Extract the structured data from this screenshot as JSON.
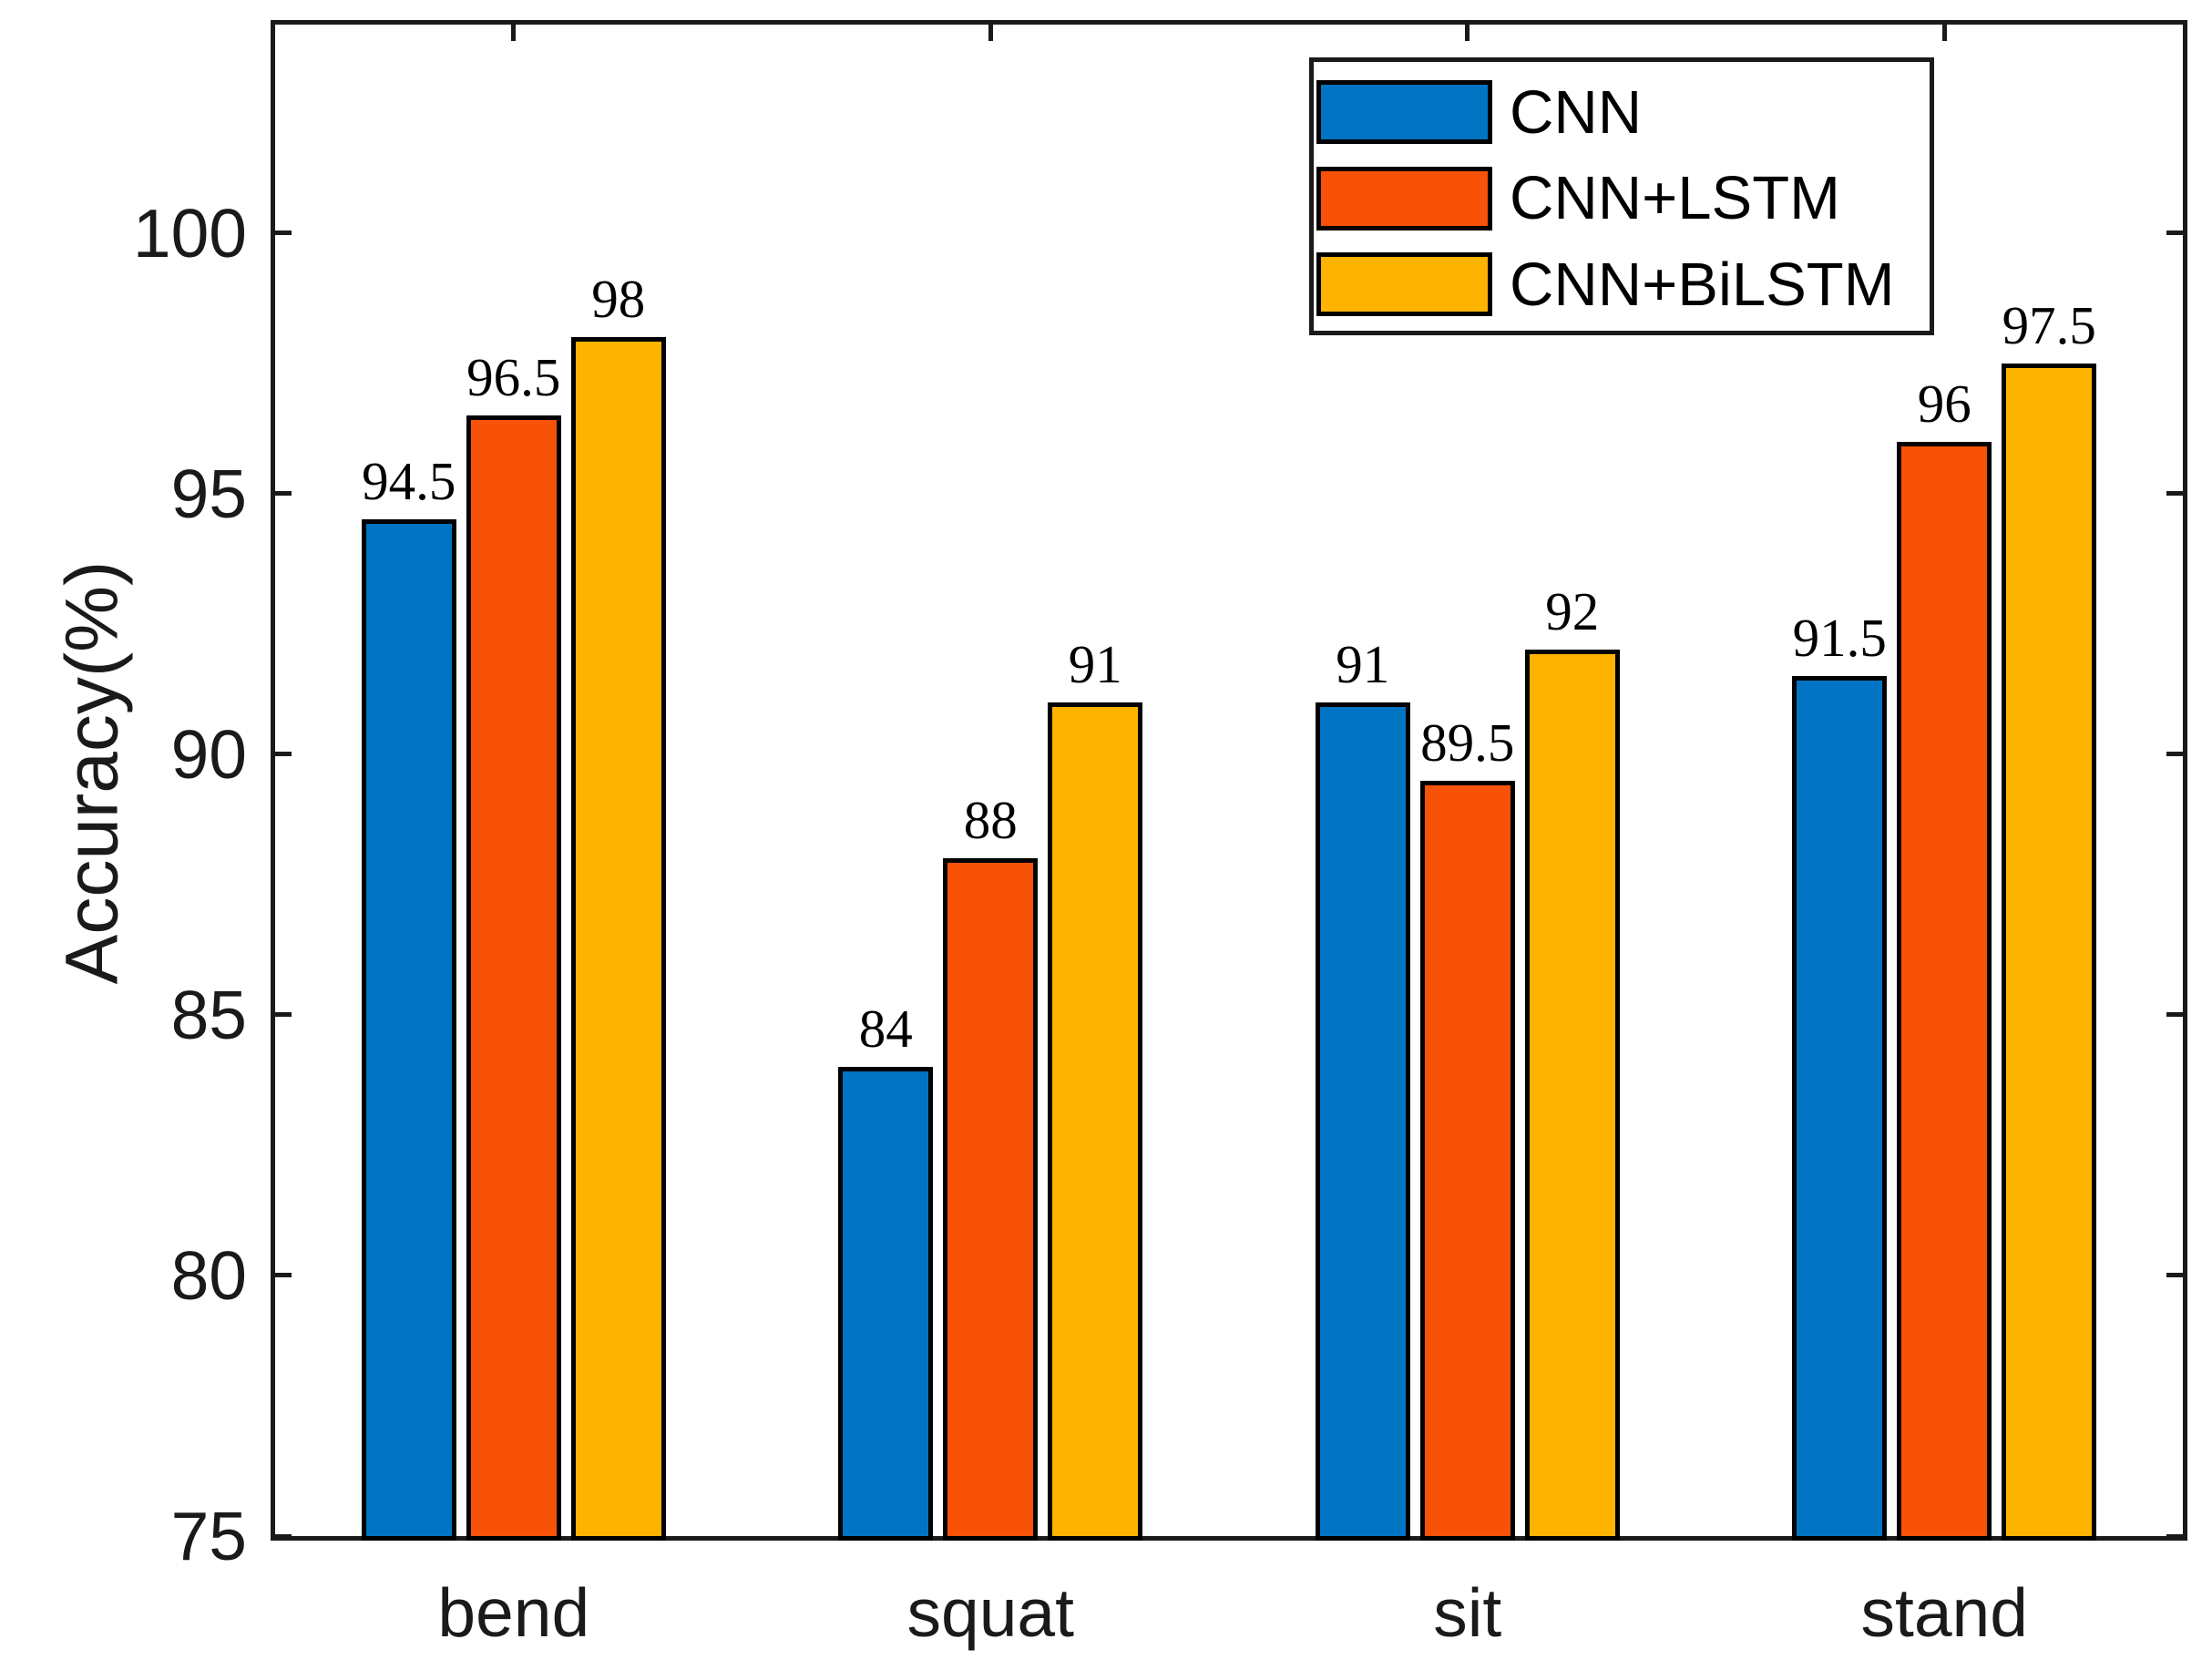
{
  "chart_data": {
    "type": "bar",
    "title": "",
    "xlabel": "",
    "ylabel": "Accuracy(%)",
    "categories": [
      "bend",
      "squat",
      "sit",
      "stand"
    ],
    "series": [
      {
        "name": "CNN",
        "color": "#0074C2",
        "values": [
          94.5,
          84,
          91,
          91.5
        ],
        "labels": [
          "94.5",
          "84",
          "91",
          "91.5"
        ]
      },
      {
        "name": "CNN+LSTM",
        "color": "#F85108",
        "values": [
          96.5,
          88,
          89.5,
          96
        ],
        "labels": [
          "96.5",
          "88",
          "89.5",
          "96"
        ]
      },
      {
        "name": "CNN+BiLSTM",
        "color": "#FEB301",
        "values": [
          98,
          91,
          92,
          97.5
        ],
        "labels": [
          "98",
          "91",
          "92",
          "97.5"
        ]
      }
    ],
    "ylim": [
      75,
      104
    ],
    "yticks": [
      75,
      80,
      85,
      90,
      95,
      100
    ],
    "ytick_labels": [
      "75",
      "80",
      "85",
      "90",
      "95",
      "100"
    ],
    "grid": false,
    "legend_position": "top-right",
    "bar_edge_color": "#000000",
    "axis_color": "#1a1a1a",
    "background_color": "#ffffff"
  }
}
